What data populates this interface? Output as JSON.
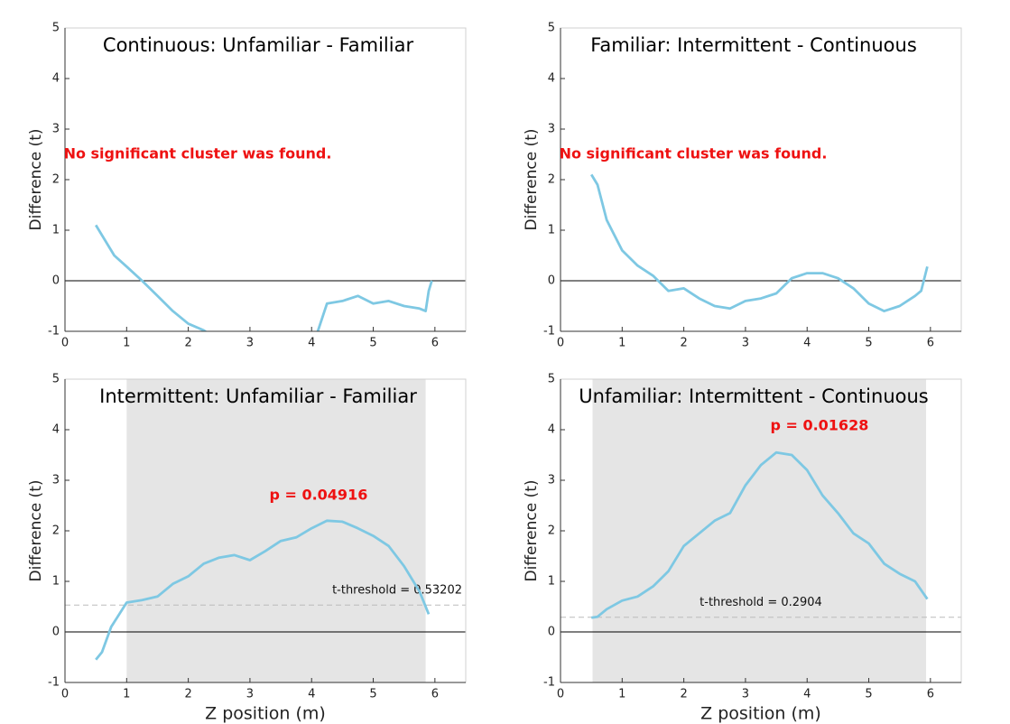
{
  "chart_data": [
    {
      "type": "line",
      "title": "Continuous: Unfamiliar - Familiar",
      "ylabel": "Difference (t)",
      "annotation": "No significant cluster was found.",
      "annotation_color": "#ee1111",
      "xlim": [
        0,
        6.5
      ],
      "xticks": [
        0,
        1,
        2,
        3,
        4,
        5,
        6
      ],
      "ylim": [
        -1,
        5
      ],
      "yticks": [
        -1,
        0,
        1,
        2,
        3,
        4,
        5
      ],
      "hline": 0,
      "x": [
        0.5,
        0.8,
        1.0,
        1.25,
        1.5,
        1.75,
        2.0,
        2.25,
        2.5,
        3.0,
        3.5,
        4.0,
        4.1,
        4.25,
        4.5,
        4.75,
        5.0,
        5.25,
        5.5,
        5.75,
        5.85,
        5.9,
        5.95
      ],
      "series": [
        {
          "color": "#7ec8e3",
          "values": [
            1.1,
            0.5,
            0.28,
            0.0,
            -0.3,
            -0.6,
            -0.85,
            -0.98,
            -1.2,
            -1.5,
            -1.5,
            -1.2,
            -1.0,
            -0.45,
            -0.4,
            -0.3,
            -0.45,
            -0.4,
            -0.5,
            -0.55,
            -0.6,
            -0.2,
            0.0
          ]
        }
      ]
    },
    {
      "type": "line",
      "title": "Familiar: Intermittent - Continuous",
      "ylabel": "Difference (t)",
      "annotation": "No significant cluster was found.",
      "annotation_color": "#ee1111",
      "xlim": [
        0,
        6.5
      ],
      "xticks": [
        0,
        1,
        2,
        3,
        4,
        5,
        6
      ],
      "ylim": [
        -1,
        5
      ],
      "yticks": [
        -1,
        0,
        1,
        2,
        3,
        4,
        5
      ],
      "hline": 0,
      "x": [
        0.5,
        0.6,
        0.75,
        1.0,
        1.25,
        1.5,
        1.75,
        2.0,
        2.25,
        2.5,
        2.75,
        3.0,
        3.25,
        3.5,
        3.75,
        4.0,
        4.25,
        4.5,
        4.75,
        5.0,
        5.25,
        5.5,
        5.75,
        5.85,
        5.95
      ],
      "series": [
        {
          "color": "#7ec8e3",
          "values": [
            2.1,
            1.9,
            1.2,
            0.6,
            0.3,
            0.1,
            -0.2,
            -0.15,
            -0.35,
            -0.5,
            -0.55,
            -0.4,
            -0.35,
            -0.25,
            0.05,
            0.15,
            0.15,
            0.05,
            -0.15,
            -0.45,
            -0.6,
            -0.5,
            -0.3,
            -0.2,
            0.28
          ]
        }
      ]
    },
    {
      "type": "line",
      "title": "Intermittent: Unfamiliar - Familiar",
      "ylabel": "Difference (t)",
      "xlabel": "Z position (m)",
      "annotation": "p = 0.04916",
      "annotation_color": "#ee1111",
      "shaded_region": [
        1.0,
        5.85
      ],
      "threshold": {
        "value": 0.53202,
        "label": "t-threshold = 0.53202"
      },
      "xlim": [
        0,
        6.5
      ],
      "xticks": [
        0,
        1,
        2,
        3,
        4,
        5,
        6
      ],
      "ylim": [
        -1,
        5
      ],
      "yticks": [
        -1,
        0,
        1,
        2,
        3,
        4,
        5
      ],
      "hline": 0,
      "x": [
        0.5,
        0.6,
        0.75,
        1.0,
        1.25,
        1.5,
        1.75,
        2.0,
        2.25,
        2.5,
        2.75,
        3.0,
        3.25,
        3.5,
        3.75,
        4.0,
        4.25,
        4.5,
        4.75,
        5.0,
        5.25,
        5.5,
        5.75,
        5.9
      ],
      "series": [
        {
          "color": "#7ec8e3",
          "values": [
            -0.55,
            -0.4,
            0.1,
            0.58,
            0.63,
            0.7,
            0.95,
            1.1,
            1.35,
            1.47,
            1.52,
            1.42,
            1.6,
            1.8,
            1.87,
            2.05,
            2.2,
            2.18,
            2.05,
            1.9,
            1.7,
            1.3,
            0.8,
            0.35
          ]
        }
      ]
    },
    {
      "type": "line",
      "title": "Unfamiliar: Intermittent - Continuous",
      "ylabel": "Difference (t)",
      "xlabel": "Z position (m)",
      "annotation": "p = 0.01628",
      "annotation_color": "#ee1111",
      "shaded_region": [
        0.52,
        5.93
      ],
      "threshold": {
        "value": 0.2904,
        "label": "t-threshold = 0.2904"
      },
      "xlim": [
        0,
        6.5
      ],
      "xticks": [
        0,
        1,
        2,
        3,
        4,
        5,
        6
      ],
      "ylim": [
        -1,
        5
      ],
      "yticks": [
        -1,
        0,
        1,
        2,
        3,
        4,
        5
      ],
      "hline": 0,
      "x": [
        0.5,
        0.6,
        0.75,
        1.0,
        1.25,
        1.5,
        1.75,
        2.0,
        2.25,
        2.5,
        2.75,
        3.0,
        3.25,
        3.5,
        3.75,
        4.0,
        4.25,
        4.5,
        4.75,
        5.0,
        5.25,
        5.5,
        5.75,
        5.95
      ],
      "series": [
        {
          "color": "#7ec8e3",
          "values": [
            0.28,
            0.3,
            0.45,
            0.62,
            0.7,
            0.9,
            1.2,
            1.7,
            1.95,
            2.2,
            2.35,
            2.9,
            3.3,
            3.55,
            3.5,
            3.2,
            2.7,
            2.35,
            1.95,
            1.75,
            1.35,
            1.15,
            1.0,
            0.65
          ]
        }
      ]
    }
  ]
}
